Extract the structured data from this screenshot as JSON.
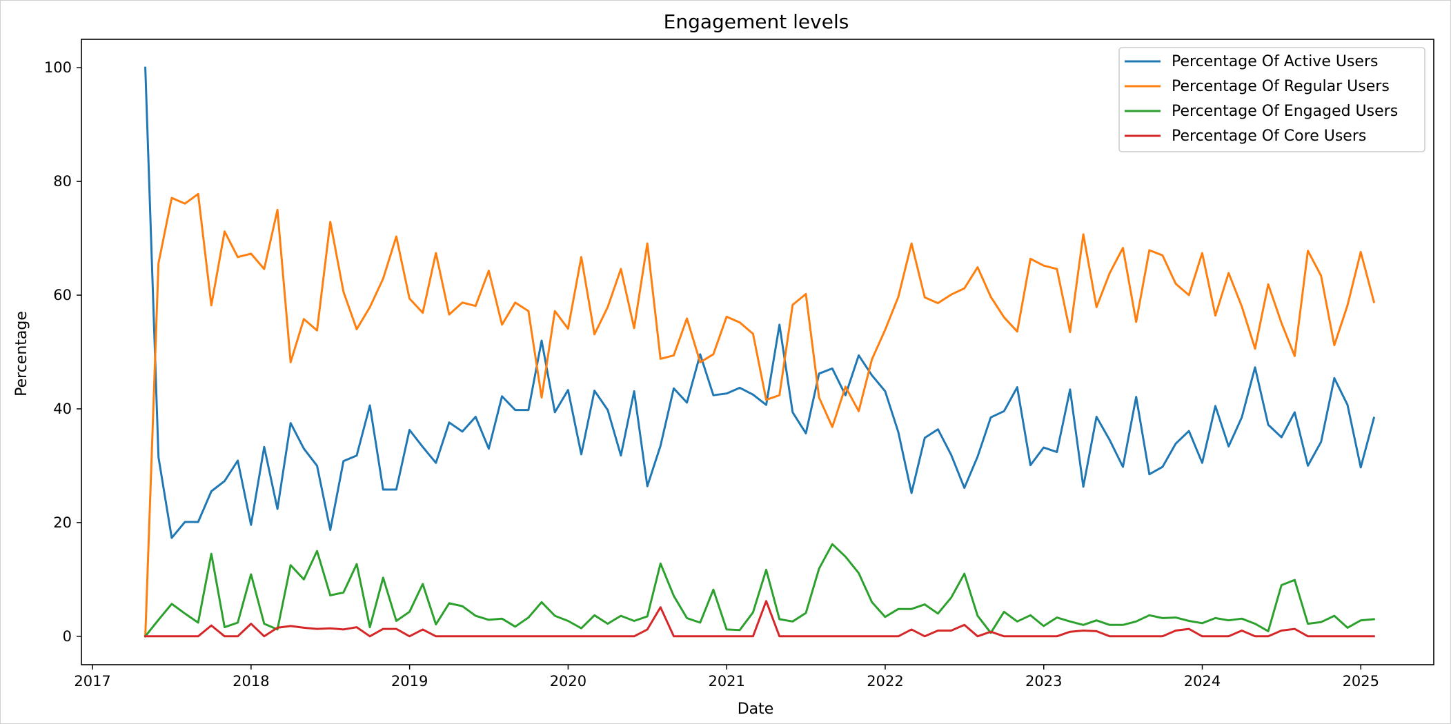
{
  "chart_data": {
    "type": "line",
    "title": "Engagement levels",
    "xlabel": "Date",
    "ylabel": "Percentage",
    "xlim": [
      2016.93,
      2025.46
    ],
    "ylim": [
      -5,
      105
    ],
    "xticks": [
      "2017",
      "2018",
      "2019",
      "2020",
      "2021",
      "2022",
      "2023",
      "2024",
      "2025"
    ],
    "yticks": [
      0,
      20,
      40,
      60,
      80,
      100
    ],
    "legend_position": "top-right",
    "grid": false,
    "x_start": 2017.333,
    "x_step": 0.08333,
    "series": [
      {
        "name": "Percentage Of Active Users",
        "color": "#1f77b4",
        "values": [
          100,
          31.5,
          17.3,
          20.1,
          20.1,
          25.5,
          27.3,
          30.9,
          19.6,
          33.3,
          22.4,
          37.5,
          33,
          30,
          18.7,
          30.8,
          31.8,
          40.6,
          25.8,
          25.8,
          36.3,
          33.3,
          30.5,
          37.6,
          36,
          38.6,
          33,
          42.2,
          39.8,
          39.8,
          52,
          39.4,
          43.3,
          32,
          43.2,
          39.8,
          31.8,
          43.1,
          26.4,
          33.5,
          43.6,
          41.1,
          49.6,
          42.4,
          42.7,
          43.7,
          42.5,
          40.7,
          54.8,
          39.4,
          35.7,
          46.2,
          47.1,
          42.4,
          49.4,
          45.9,
          43.1,
          35.9,
          25.2,
          34.9,
          36.4,
          31.9,
          26.1,
          31.6,
          38.5,
          39.6,
          43.8,
          30.1,
          33.2,
          32.4,
          43.4,
          26.3,
          38.6,
          34.5,
          29.8,
          42.1,
          28.5,
          29.8,
          33.9,
          36.1,
          30.5,
          40.5,
          33.4,
          38.5,
          47.3,
          37.2,
          35,
          39.4,
          30,
          34.2,
          45.4,
          40.7,
          29.7,
          38.4
        ]
      },
      {
        "name": "Percentage Of Regular Users",
        "color": "#ff7f0e",
        "values": [
          0,
          65.6,
          77.1,
          76.1,
          77.8,
          58.2,
          71.2,
          66.7,
          67.3,
          64.6,
          75,
          48.2,
          55.8,
          53.8,
          72.9,
          60.6,
          54,
          57.9,
          62.9,
          70.3,
          59.4,
          56.9,
          67.4,
          56.6,
          58.7,
          58.1,
          64.3,
          54.8,
          58.7,
          57.2,
          42,
          57.2,
          54.1,
          66.7,
          53.1,
          57.9,
          64.6,
          54.2,
          69.1,
          48.8,
          49.4,
          55.9,
          48.2,
          49.6,
          56.2,
          55.2,
          53.2,
          41.6,
          42.4,
          58.3,
          60.2,
          42,
          36.8,
          43.9,
          39.6,
          48.7,
          53.9,
          59.7,
          69.1,
          59.6,
          58.6,
          60.1,
          61.2,
          64.9,
          59.7,
          56.1,
          53.6,
          66.4,
          65.2,
          64.6,
          53.5,
          70.7,
          57.9,
          63.9,
          68.3,
          55.3,
          67.9,
          67,
          62,
          60,
          67.4,
          56.4,
          63.9,
          58,
          50.6,
          61.9,
          55.1,
          49.3,
          67.8,
          63.4,
          51.2,
          58.2,
          67.6,
          58.8
        ]
      },
      {
        "name": "Percentage Of Engaged Users",
        "color": "#2ca02c",
        "values": [
          0,
          2.9,
          5.7,
          4,
          2.4,
          14.5,
          1.6,
          2.4,
          10.9,
          2.2,
          1.2,
          12.5,
          10,
          15,
          7.2,
          7.7,
          12.7,
          1.6,
          10.3,
          2.7,
          4.3,
          9.2,
          2.1,
          5.8,
          5.3,
          3.6,
          2.9,
          3.1,
          1.7,
          3.3,
          6,
          3.6,
          2.7,
          1.4,
          3.7,
          2.2,
          3.6,
          2.7,
          3.5,
          12.8,
          7.1,
          3.2,
          2.4,
          8.2,
          1.2,
          1.1,
          4.2,
          11.7,
          3,
          2.6,
          4.1,
          11.9,
          16.2,
          14,
          11.1,
          6,
          3.4,
          4.8,
          4.8,
          5.6,
          4,
          6.8,
          11,
          3.6,
          0.6,
          4.3,
          2.6,
          3.7,
          1.8,
          3.3,
          2.6,
          2,
          2.8,
          2,
          2,
          2.6,
          3.7,
          3.2,
          3.3,
          2.7,
          2.3,
          3.2,
          2.8,
          3.1,
          2.2,
          0.9,
          9,
          9.9,
          2.2,
          2.5,
          3.6,
          1.5,
          2.8,
          3
        ]
      },
      {
        "name": "Percentage Of Core Users",
        "color": "#d62728",
        "values": [
          0,
          0,
          0,
          0,
          0,
          1.9,
          0,
          0,
          2.2,
          0,
          1.5,
          1.8,
          1.5,
          1.3,
          1.4,
          1.2,
          1.6,
          0,
          1.3,
          1.3,
          0,
          1.2,
          0,
          0,
          0,
          0,
          0,
          0,
          0,
          0,
          0,
          0,
          0,
          0,
          0,
          0,
          0,
          0,
          1.2,
          5.1,
          0,
          0,
          0,
          0,
          0,
          0,
          0,
          6.2,
          0,
          0,
          0,
          0,
          0,
          0,
          0,
          0,
          0,
          0,
          1.2,
          0,
          1,
          1,
          2,
          0,
          0.8,
          0,
          0,
          0,
          0,
          0,
          0.8,
          1,
          0.9,
          0,
          0,
          0,
          0,
          0,
          1,
          1.3,
          0,
          0,
          0,
          1,
          0,
          0,
          1,
          1.3,
          0,
          0,
          0,
          0,
          0,
          0
        ]
      }
    ]
  }
}
